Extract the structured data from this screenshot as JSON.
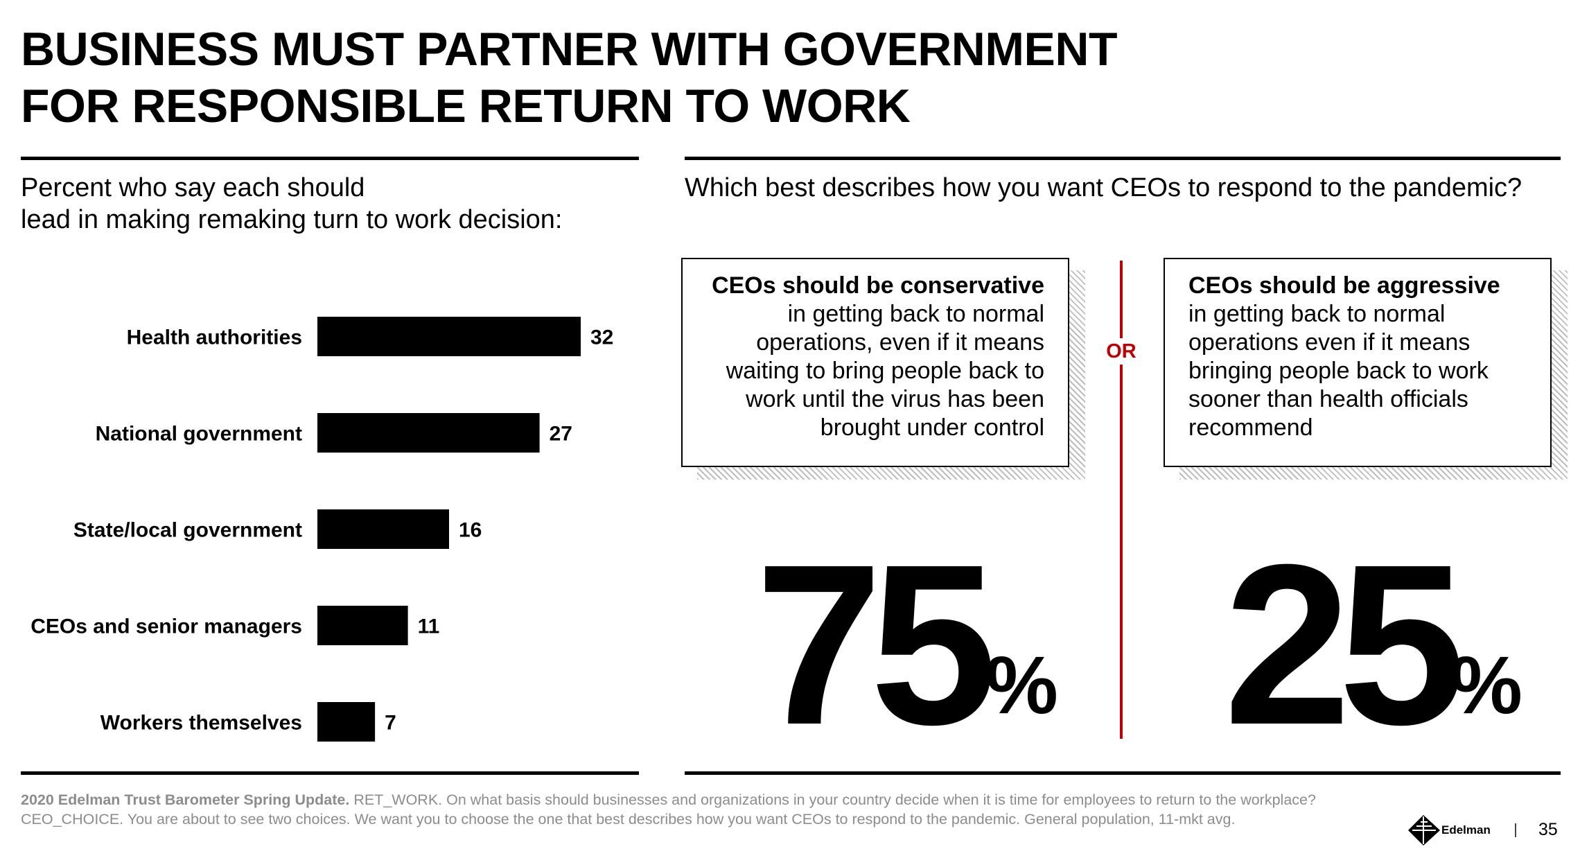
{
  "title": {
    "line1": "BUSINESS MUST PARTNER WITH GOVERNMENT",
    "line2": "FOR RESPONSIBLE RETURN TO WORK"
  },
  "left_panel": {
    "subtitle_line1": "Percent who say each should",
    "subtitle_line2": "lead in making remaking turn to work decision:"
  },
  "right_panel": {
    "question": "Which best describes how you want CEOs to respond to the pandemic?",
    "or_label": "OR",
    "left_choice": {
      "bold": "CEOs should be conservative",
      "rest": "in getting back to normal operations, even if it means waiting to bring people back to work until the virus has been brought under control",
      "value": "75",
      "unit": "%"
    },
    "right_choice": {
      "bold": "CEOs should be aggressive",
      "rest": "in getting back to normal operations even if it means bringing people back to work sooner than health officials recommend",
      "value": "25",
      "unit": "%"
    },
    "divider_color": "#c00000"
  },
  "chart_data": {
    "type": "bar",
    "orientation": "horizontal",
    "categories": [
      "Health authorities",
      "National government",
      "State/local government",
      "CEOs and senior managers",
      "Workers themselves"
    ],
    "values": [
      32,
      27,
      16,
      11,
      7
    ],
    "xlim": [
      0,
      32
    ],
    "bar_color": "#000000",
    "grid": false
  },
  "footnote": {
    "bold": "2020 Edelman Trust Barometer Spring Update.",
    "text": " RET_WORK. On what basis should businesses and organizations in your country decide when it is time for employees to return to the workplace? CEO_CHOICE. You are about to see two choices. We want you to choose the one that best describes how you want CEOs to respond to the pandemic. General population, 11-mkt avg."
  },
  "brand": {
    "logo_icon": "edelman-logo-icon",
    "name": "Edelman",
    "page_number": "35"
  }
}
